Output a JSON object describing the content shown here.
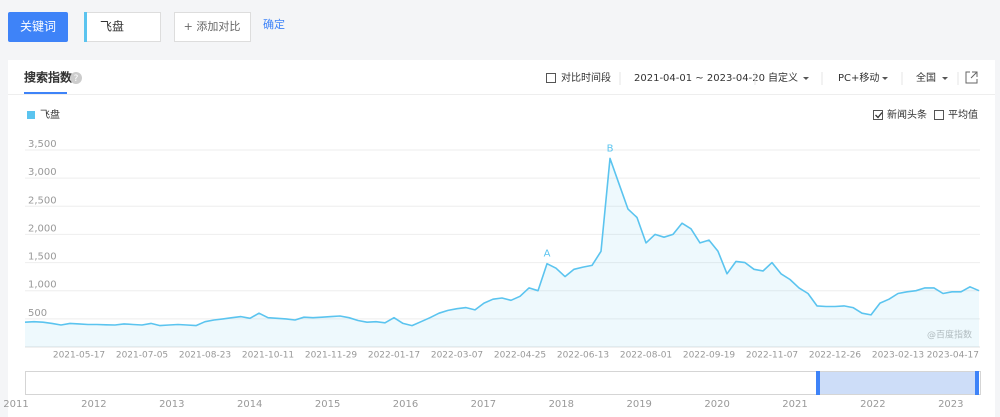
{
  "ui": {
    "keyword_button": "关键词",
    "keyword_input": "飞盘",
    "add_compare": "+ 添加对比",
    "confirm": "确定",
    "tab": "搜索指数",
    "help": "?",
    "compare_period": {
      "label": "对比时间段",
      "checked": false
    },
    "date_range": "2021-04-01 ~ 2023-04-20",
    "custom": "自定义",
    "device": "PC+移动",
    "region": "全国",
    "news": {
      "label": "新闻头条",
      "checked": true
    },
    "average": {
      "label": "平均值",
      "checked": false
    },
    "watermark": "@百度指数",
    "overview_years": [
      "2011",
      "2012",
      "2013",
      "2014",
      "2015",
      "2016",
      "2017",
      "2018",
      "2019",
      "2020",
      "2021",
      "2022",
      "2023"
    ]
  },
  "chart_data": {
    "type": "line",
    "categories": [
      null,
      null,
      null,
      null,
      null,
      null,
      "2021-05-17",
      null,
      null,
      null,
      null,
      null,
      null,
      "2021-07-05",
      null,
      null,
      null,
      null,
      null,
      null,
      "2021-08-23",
      null,
      null,
      null,
      null,
      null,
      null,
      "2021-10-11",
      null,
      null,
      null,
      null,
      null,
      null,
      "2021-11-29",
      null,
      null,
      null,
      null,
      null,
      null,
      "2022-01-17",
      null,
      null,
      null,
      null,
      null,
      null,
      "2022-03-07",
      null,
      null,
      null,
      null,
      null,
      null,
      "2022-04-25",
      null,
      null,
      null,
      null,
      null,
      null,
      "2022-06-13",
      null,
      null,
      null,
      null,
      null,
      null,
      "2022-08-01",
      null,
      null,
      null,
      null,
      null,
      null,
      "2022-09-19",
      null,
      null,
      null,
      null,
      null,
      null,
      "2022-11-07",
      null,
      null,
      null,
      null,
      null,
      null,
      "2022-12-26",
      null,
      null,
      null,
      null,
      null,
      null,
      "2023-02-13",
      null,
      null,
      null,
      null,
      null,
      null,
      null,
      null,
      "2023-04-17"
    ],
    "series": [
      {
        "name": "飞盘",
        "color": "#5bc4ef",
        "values": [
          440,
          450,
          440,
          420,
          390,
          420,
          410,
          400,
          400,
          395,
          390,
          410,
          400,
          390,
          420,
          380,
          390,
          400,
          390,
          380,
          450,
          480,
          500,
          520,
          540,
          510,
          600,
          520,
          510,
          500,
          480,
          530,
          520,
          530,
          540,
          550,
          520,
          470,
          440,
          450,
          430,
          520,
          420,
          380,
          450,
          520,
          600,
          650,
          680,
          700,
          660,
          780,
          850,
          870,
          830,
          900,
          1050,
          1000,
          1480,
          1400,
          1250,
          1380,
          1420,
          1450,
          1700,
          3350,
          2900,
          2450,
          2300,
          1850,
          2000,
          1950,
          2000,
          2200,
          2100,
          1850,
          1900,
          1700,
          1300,
          1520,
          1500,
          1380,
          1350,
          1500,
          1300,
          1200,
          1050,
          950,
          730,
          720,
          720,
          730,
          700,
          600,
          570,
          780,
          850,
          950,
          980,
          1000,
          1050,
          1050,
          950,
          980,
          980,
          1070,
          1000
        ],
        "point_labels": [
          null,
          null,
          null,
          null,
          null,
          null,
          null,
          null,
          null,
          null,
          null,
          null,
          null,
          null,
          null,
          null,
          null,
          null,
          null,
          null,
          null,
          null,
          null,
          null,
          null,
          null,
          null,
          null,
          null,
          null,
          null,
          null,
          null,
          null,
          null,
          null,
          null,
          null,
          null,
          null,
          null,
          null,
          null,
          null,
          null,
          null,
          null,
          null,
          null,
          null,
          null,
          null,
          null,
          null,
          null,
          null,
          null,
          null,
          "A",
          null,
          null,
          null,
          null,
          null,
          null,
          "B",
          null,
          null,
          null,
          null,
          null,
          null,
          null,
          null,
          null,
          null,
          null,
          null,
          null,
          null,
          null,
          null,
          null,
          null,
          null,
          null,
          null,
          null,
          null,
          null,
          null,
          null,
          null,
          null,
          null,
          null,
          null,
          null,
          null,
          null,
          null,
          null,
          null,
          null,
          null,
          null,
          null
        ]
      }
    ],
    "ylim": [
      0,
      3500
    ],
    "yticks": [
      500,
      {
        "value": 1000,
        "label": "1,000"
      },
      {
        "value": 1500,
        "label": "1,500"
      },
      {
        "value": 2000,
        "label": "2,000"
      },
      {
        "value": 2500,
        "label": "2,500"
      },
      {
        "value": 3000,
        "label": "3,000"
      },
      {
        "value": 3500,
        "label": "3,500"
      }
    ],
    "grid": true
  }
}
